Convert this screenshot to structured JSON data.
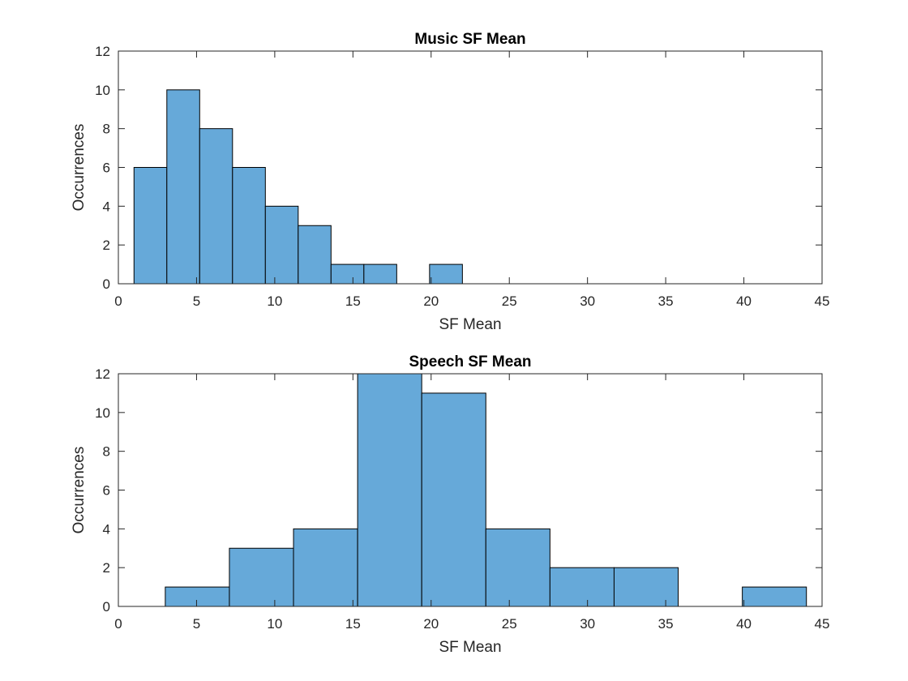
{
  "chart_data": [
    {
      "type": "bar",
      "title": "Music SF Mean",
      "xlabel": "SF Mean",
      "ylabel": "Occurrences",
      "xlim": [
        0,
        45
      ],
      "ylim": [
        0,
        12
      ],
      "xticks": [
        0,
        5,
        10,
        15,
        20,
        25,
        30,
        35,
        40,
        45
      ],
      "yticks": [
        0,
        2,
        4,
        6,
        8,
        10,
        12
      ],
      "grid": false,
      "bar_color": "#66a9d9",
      "bins": [
        {
          "x0": 1.0,
          "x1": 3.1,
          "count": 6
        },
        {
          "x0": 3.1,
          "x1": 5.2,
          "count": 10
        },
        {
          "x0": 5.2,
          "x1": 7.3,
          "count": 8
        },
        {
          "x0": 7.3,
          "x1": 9.4,
          "count": 6
        },
        {
          "x0": 9.4,
          "x1": 11.5,
          "count": 4
        },
        {
          "x0": 11.5,
          "x1": 13.6,
          "count": 3
        },
        {
          "x0": 13.6,
          "x1": 15.7,
          "count": 1
        },
        {
          "x0": 15.7,
          "x1": 17.8,
          "count": 1
        },
        {
          "x0": 17.8,
          "x1": 19.9,
          "count": 0
        },
        {
          "x0": 19.9,
          "x1": 22.0,
          "count": 1
        }
      ]
    },
    {
      "type": "bar",
      "title": "Speech SF Mean",
      "xlabel": "SF Mean",
      "ylabel": "Occurrences",
      "xlim": [
        0,
        45
      ],
      "ylim": [
        0,
        12
      ],
      "xticks": [
        0,
        5,
        10,
        15,
        20,
        25,
        30,
        35,
        40,
        45
      ],
      "yticks": [
        0,
        2,
        4,
        6,
        8,
        10,
        12
      ],
      "grid": false,
      "bar_color": "#66a9d9",
      "bins": [
        {
          "x0": 3.0,
          "x1": 7.1,
          "count": 1
        },
        {
          "x0": 7.1,
          "x1": 11.2,
          "count": 3
        },
        {
          "x0": 11.2,
          "x1": 15.3,
          "count": 4
        },
        {
          "x0": 15.3,
          "x1": 19.4,
          "count": 12
        },
        {
          "x0": 19.4,
          "x1": 23.5,
          "count": 11
        },
        {
          "x0": 23.5,
          "x1": 27.6,
          "count": 4
        },
        {
          "x0": 27.6,
          "x1": 31.7,
          "count": 2
        },
        {
          "x0": 31.7,
          "x1": 35.8,
          "count": 2
        },
        {
          "x0": 35.8,
          "x1": 39.9,
          "count": 0
        },
        {
          "x0": 39.9,
          "x1": 44.0,
          "count": 1
        }
      ]
    }
  ]
}
